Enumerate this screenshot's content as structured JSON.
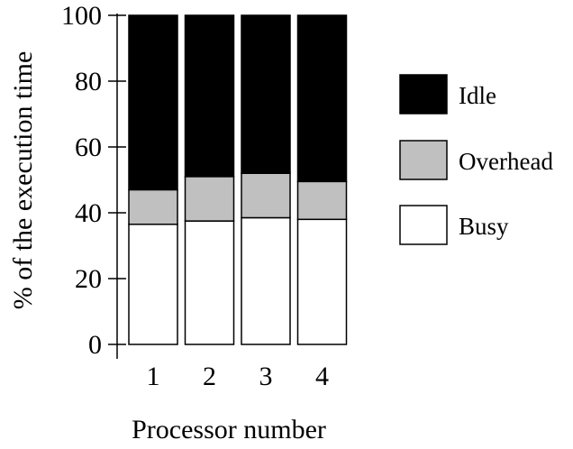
{
  "chart_data": {
    "type": "bar",
    "stacked": true,
    "categories": [
      "1",
      "2",
      "3",
      "4"
    ],
    "series": [
      {
        "name": "Busy",
        "values": [
          36.5,
          37.5,
          38.5,
          38
        ],
        "color": "#ffffff"
      },
      {
        "name": "Overhead",
        "values": [
          10.5,
          13.5,
          13.5,
          11.5
        ],
        "color": "#c0c0c0"
      },
      {
        "name": "Idle",
        "values": [
          53,
          49,
          48,
          50.5
        ],
        "color": "#000000"
      }
    ],
    "xlabel": "Processor number",
    "ylabel": "% of the execution time",
    "ylim": [
      0,
      100
    ],
    "yticks": [
      "0",
      "20",
      "40",
      "60",
      "80",
      "100"
    ],
    "legend_position": "right",
    "legend_order": [
      "Idle",
      "Overhead",
      "Busy"
    ],
    "grid": false
  }
}
